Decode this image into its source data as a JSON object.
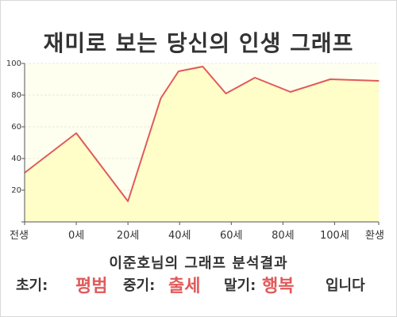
{
  "title": "재미로 보는 당신의 인생 그래프",
  "chart_data": {
    "type": "area",
    "title": "재미로 보는 당신의 인생 그래프",
    "xlabel": "",
    "ylabel": "",
    "x_tick_labels": [
      "전생",
      "0세",
      "20세",
      "40세",
      "60세",
      "80세",
      "100세",
      "환생"
    ],
    "y_ticks": [
      20,
      40,
      60,
      80,
      100
    ],
    "ylim": [
      0,
      100
    ],
    "grid": true,
    "series": [
      {
        "x": [
          -0.96,
          0,
          0.96,
          1.57,
          1.9,
          2.35,
          2.78,
          3.32,
          3.98,
          4.72,
          5.62
        ],
        "y": [
          31,
          56,
          13,
          78,
          95,
          98,
          81,
          91,
          82,
          90,
          89
        ]
      }
    ],
    "colors": {
      "line": "#e05a5a",
      "fill": "#fffdc8",
      "plot_bg": "#fffff0",
      "grid": "#e8e8d8"
    }
  },
  "caption": "이준호님의 그래프 분석결과",
  "result": {
    "early_label": "초기:",
    "early_value": "평범",
    "mid_label": "중기:",
    "mid_value": "출세",
    "late_label": "말기:",
    "late_value": "행복",
    "suffix": "입니다"
  }
}
